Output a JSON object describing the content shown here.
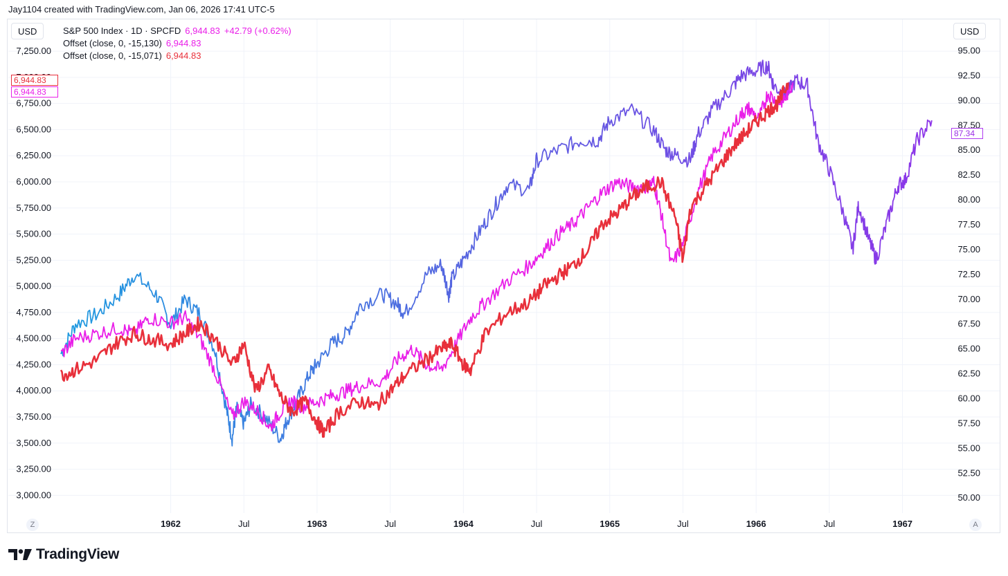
{
  "header": {
    "credit": "Jay1104 created with TradingView.com, Jan 06, 2026 17:41 UTC-5"
  },
  "currency": {
    "left": "USD",
    "right": "USD"
  },
  "legend": {
    "main": {
      "title": "S&P 500 Index · 1D · SPCFD",
      "value": "6,944.83",
      "change": "+42.79 (+0.62%)"
    },
    "offset1": {
      "label": "Offset (close, 0, -15,130)",
      "value": "6,944.83",
      "color": "#e91ee8"
    },
    "offset2": {
      "label": "Offset (close, 0, -15,071)",
      "value": "6,944.83",
      "color": "#e8303b"
    }
  },
  "price_tags": {
    "left_red": "6,944.83",
    "left_pink": "6,944.83",
    "right_purple": "87.34"
  },
  "corner_buttons": {
    "left": "Z",
    "right": "A"
  },
  "footer": {
    "brand": "TradingView"
  },
  "chart_data": {
    "type": "line",
    "title": "S&P 500 Index · 1D · SPCFD",
    "left_axis": {
      "ticks": [
        "7,250.00",
        "7,000.00",
        "6,750.00",
        "6,500.00",
        "6,250.00",
        "6,000.00",
        "5,750.00",
        "5,500.00",
        "5,250.00",
        "5,000.00",
        "4,750.00",
        "4,500.00",
        "4,250.00",
        "4,000.00",
        "3,750.00",
        "3,500.00",
        "3,250.00",
        "3,000.00"
      ],
      "range": [
        2870,
        7330
      ]
    },
    "right_axis": {
      "ticks": [
        "95.00",
        "92.50",
        "90.00",
        "87.50",
        "85.00",
        "82.50",
        "80.00",
        "77.50",
        "75.00",
        "72.50",
        "70.00",
        "67.50",
        "65.00",
        "62.50",
        "60.00",
        "57.50",
        "55.00",
        "52.50",
        "50.00"
      ],
      "range": [
        48.9,
        95.8
      ]
    },
    "x_axis": {
      "range": [
        1961.25,
        1967.3
      ],
      "ticks": [
        {
          "t": 1962.0,
          "label": "1962",
          "year": true
        },
        {
          "t": 1962.5,
          "label": "Jul",
          "year": false
        },
        {
          "t": 1963.0,
          "label": "1963",
          "year": true
        },
        {
          "t": 1963.5,
          "label": "Jul",
          "year": false
        },
        {
          "t": 1964.0,
          "label": "1964",
          "year": true
        },
        {
          "t": 1964.5,
          "label": "Jul",
          "year": false
        },
        {
          "t": 1965.0,
          "label": "1965",
          "year": true
        },
        {
          "t": 1965.5,
          "label": "Jul",
          "year": false
        },
        {
          "t": 1966.0,
          "label": "1966",
          "year": true
        },
        {
          "t": 1966.5,
          "label": "Jul",
          "year": false
        },
        {
          "t": 1967.0,
          "label": "1967",
          "year": true
        }
      ]
    },
    "series": [
      {
        "name": "S&P 500 Index (right axis, blue–purple)",
        "axis": "right",
        "color_start": "#1e9be0",
        "color_end": "#8d35e8",
        "x": [
          1961.25,
          1961.35,
          1961.5,
          1961.65,
          1961.75,
          1961.9,
          1962.0,
          1962.1,
          1962.2,
          1962.3,
          1962.38,
          1962.42,
          1962.45,
          1962.5,
          1962.55,
          1962.65,
          1962.75,
          1962.8,
          1962.87,
          1962.95,
          1963.0,
          1963.1,
          1963.2,
          1963.3,
          1963.45,
          1963.55,
          1963.6,
          1963.75,
          1963.85,
          1963.9,
          1963.92,
          1964.0,
          1964.1,
          1964.2,
          1964.3,
          1964.45,
          1964.5,
          1964.65,
          1964.8,
          1964.92,
          1965.0,
          1965.15,
          1965.3,
          1965.38,
          1965.45,
          1965.55,
          1965.6,
          1965.7,
          1965.82,
          1965.9,
          1966.0,
          1966.08,
          1966.12,
          1966.2,
          1966.27,
          1966.35,
          1966.42,
          1966.5,
          1966.6,
          1966.66,
          1966.7,
          1966.77,
          1966.82,
          1966.9,
          1966.97,
          1967.02,
          1967.1,
          1967.2
        ],
        "y": [
          64.5,
          67.5,
          68.5,
          70.5,
          72.5,
          70.5,
          67.5,
          70.0,
          68.5,
          65.0,
          59.0,
          56.0,
          59.0,
          57.5,
          59.5,
          58.0,
          56.0,
          58.0,
          60.0,
          62.5,
          63.5,
          65.5,
          66.5,
          69.5,
          70.5,
          69.5,
          68.5,
          72.5,
          73.5,
          70.5,
          72.0,
          74.0,
          76.5,
          79.0,
          81.5,
          81.0,
          84.0,
          85.0,
          86.0,
          86.0,
          88.0,
          89.0,
          87.0,
          85.0,
          84.5,
          84.0,
          86.5,
          89.0,
          91.0,
          92.5,
          93.0,
          93.5,
          91.5,
          90.5,
          92.0,
          91.5,
          86.0,
          83.0,
          78.5,
          75.0,
          79.5,
          76.0,
          74.0,
          78.0,
          81.5,
          82.0,
          86.0,
          88.0
        ]
      },
      {
        "name": "Offset (close, 0, -15,130)",
        "axis": "left",
        "color": "#e91ee8",
        "x": [
          1961.25,
          1961.35,
          1961.5,
          1961.65,
          1961.75,
          1961.85,
          1962.0,
          1962.1,
          1962.2,
          1962.3,
          1962.42,
          1962.5,
          1962.6,
          1962.68,
          1962.75,
          1962.82,
          1962.9,
          1963.0,
          1963.1,
          1963.2,
          1963.3,
          1963.45,
          1963.55,
          1963.65,
          1963.75,
          1963.85,
          1963.95,
          1964.05,
          1964.15,
          1964.3,
          1964.45,
          1964.55,
          1964.65,
          1964.75,
          1964.85,
          1964.95,
          1965.05,
          1965.15,
          1965.25,
          1965.3,
          1965.35,
          1965.42,
          1965.5,
          1965.6,
          1965.7,
          1965.8,
          1965.9,
          1965.95,
          1966.02,
          1966.08,
          1966.15,
          1966.2,
          1966.25
        ],
        "y": [
          4350,
          4500,
          4550,
          4600,
          4550,
          4700,
          4650,
          4700,
          4500,
          4200,
          3750,
          3900,
          3800,
          3650,
          3800,
          3900,
          3850,
          3900,
          3950,
          4000,
          4050,
          4100,
          4300,
          4400,
          4250,
          4200,
          4450,
          4700,
          4850,
          5050,
          5200,
          5350,
          5500,
          5600,
          5750,
          5900,
          6000,
          5950,
          5950,
          6000,
          5700,
          5200,
          5400,
          5900,
          6250,
          6450,
          6650,
          6700,
          6600,
          6850,
          6750,
          6800,
          6950
        ]
      },
      {
        "name": "Offset (close, 0, -15,071)",
        "axis": "left",
        "color": "#e8303b",
        "x": [
          1961.25,
          1961.35,
          1961.5,
          1961.62,
          1961.75,
          1961.85,
          1962.0,
          1962.1,
          1962.2,
          1962.3,
          1962.42,
          1962.5,
          1962.58,
          1962.67,
          1962.75,
          1962.83,
          1962.92,
          1963.0,
          1963.05,
          1963.15,
          1963.3,
          1963.4,
          1963.5,
          1963.6,
          1963.75,
          1963.85,
          1963.92,
          1964.0,
          1964.05,
          1964.15,
          1964.3,
          1964.45,
          1964.55,
          1964.65,
          1964.75,
          1964.85,
          1964.95,
          1965.05,
          1965.15,
          1965.25,
          1965.35,
          1965.45,
          1965.5,
          1965.55,
          1965.65,
          1965.75,
          1965.85,
          1965.95,
          1966.02,
          1966.1,
          1966.15,
          1966.22
        ],
        "y": [
          4150,
          4200,
          4300,
          4450,
          4550,
          4500,
          4450,
          4550,
          4650,
          4500,
          4250,
          4450,
          4000,
          4200,
          3950,
          3800,
          3900,
          3700,
          3600,
          3800,
          3900,
          3850,
          4000,
          4150,
          4300,
          4400,
          4450,
          4250,
          4200,
          4550,
          4750,
          4850,
          5000,
          5100,
          5200,
          5350,
          5600,
          5700,
          5850,
          5950,
          6000,
          5650,
          5250,
          5750,
          5950,
          6150,
          6350,
          6500,
          6600,
          6700,
          6750,
          6950
        ]
      }
    ]
  }
}
